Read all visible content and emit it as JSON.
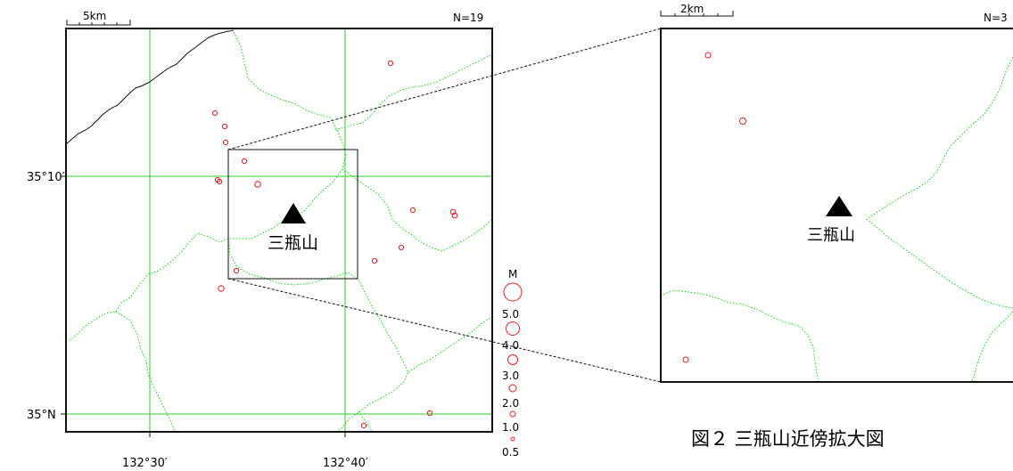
{
  "left_map": {
    "scale_label": "5km",
    "count_label": "N=19",
    "lat_labels": [
      "35°10′",
      "35°N"
    ],
    "lon_labels": [
      "132°30′",
      "132°40′"
    ],
    "volcano_label": "三瓶山"
  },
  "right_map": {
    "scale_label": "2km",
    "count_label": "N=3",
    "volcano_label": "三瓶山"
  },
  "legend": {
    "title": "M",
    "magnitudes": [
      "5.0",
      "4.0",
      "3.0",
      "2.0",
      "1.0",
      "0.5"
    ]
  },
  "caption": "図２ 三瓶山近傍拡大図",
  "colors": {
    "border": "#00dd00",
    "grid": "#33cc33",
    "quake": "#e82020",
    "coast": "#111111"
  },
  "map_data": {
    "type": "scatter",
    "left_epicenters_count": 19,
    "right_epicenters_count": 3
  }
}
